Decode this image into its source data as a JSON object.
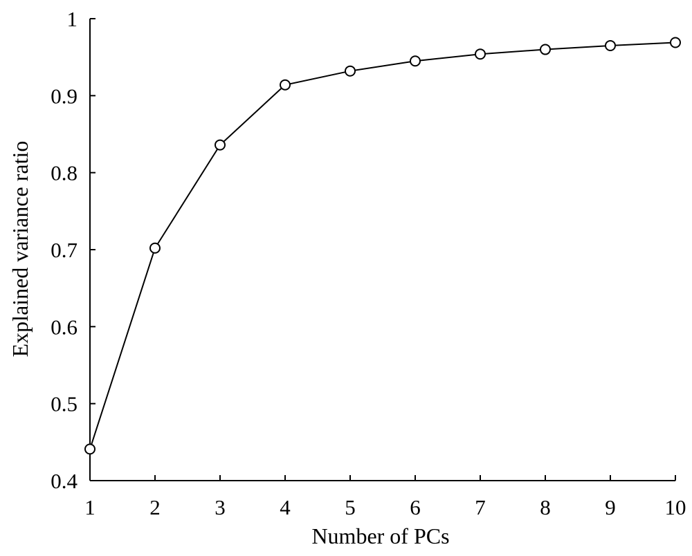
{
  "chart_data": {
    "type": "line",
    "title": "",
    "xlabel": "Number of PCs",
    "ylabel": "Explained variance ratio",
    "x": [
      1,
      2,
      3,
      4,
      5,
      6,
      7,
      8,
      9,
      10
    ],
    "series": [
      {
        "values": [
          0.441,
          0.702,
          0.836,
          0.914,
          0.932,
          0.945,
          0.954,
          0.96,
          0.965,
          0.969
        ],
        "marker": "open-circle",
        "color": "#000000"
      }
    ],
    "xlim": [
      1,
      10
    ],
    "ylim": [
      0.4,
      1.0
    ],
    "xticks": [
      "1",
      "2",
      "3",
      "4",
      "5",
      "6",
      "7",
      "8",
      "9",
      "10"
    ],
    "yticks": [
      "0.4",
      "0.5",
      "0.6",
      "0.7",
      "0.8",
      "0.9",
      "1"
    ],
    "grid": false,
    "legend": "none"
  }
}
